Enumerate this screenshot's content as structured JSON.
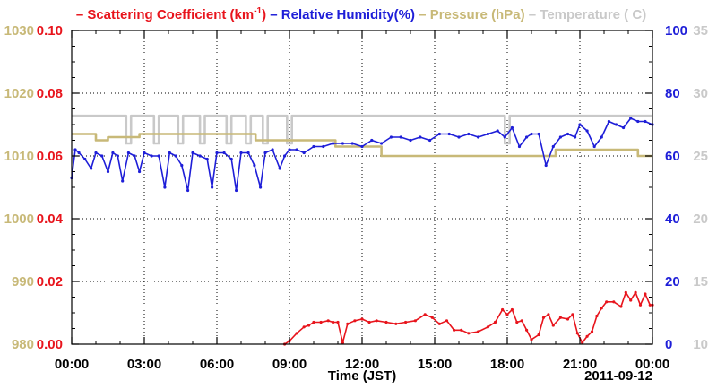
{
  "chart_data": {
    "type": "line",
    "xlabel": "Time (JST)",
    "date_label": "2011-09-12",
    "x_ticks": [
      "00:00",
      "03:00",
      "06:00",
      "09:00",
      "12:00",
      "15:00",
      "18:00",
      "21:00",
      "00:00"
    ],
    "xlim_hours": [
      0,
      24
    ],
    "grid": true,
    "legend": {
      "placement": "top",
      "entries": [
        {
          "name": "Scattering Coefficient (km",
          "sup": "-1",
          "suffix": ")",
          "color": "#e8141c"
        },
        {
          "name": "Relative Humidity(%)",
          "color": "#1e1ed8"
        },
        {
          "name": "Pressure (hPa)",
          "color": "#c8b978"
        },
        {
          "name": "Temperature (",
          "suffix": "C)",
          "color": "#c9c9c9"
        }
      ]
    },
    "axes": {
      "pressure": {
        "ticks": [
          "980",
          "990",
          "1000",
          "1010",
          "1020",
          "1030"
        ],
        "range": [
          980,
          1030
        ],
        "color": "#c8b978"
      },
      "scattering": {
        "ticks": [
          "0.00",
          "0.02",
          "0.04",
          "0.06",
          "0.08",
          "0.10"
        ],
        "range": [
          0,
          0.1
        ],
        "color": "#e8141c"
      },
      "humidity": {
        "ticks": [
          "0",
          "20",
          "40",
          "60",
          "80",
          "100"
        ],
        "range": [
          0,
          100
        ],
        "color": "#1e1ed8"
      },
      "temperature": {
        "ticks": [
          "10",
          "15",
          "20",
          "25",
          "30",
          "35"
        ],
        "range": [
          10,
          35
        ],
        "color": "#c9c9c9"
      }
    },
    "series": [
      {
        "name": "Scattering Coefficient",
        "axis": "scattering",
        "color": "#e8141c",
        "x": [
          8.8,
          9.0,
          9.3,
          9.6,
          9.8,
          10.0,
          10.3,
          10.6,
          10.8,
          11.0,
          11.2,
          11.4,
          11.7,
          12.0,
          12.3,
          12.6,
          13.0,
          13.4,
          13.8,
          14.2,
          14.6,
          14.9,
          15.2,
          15.5,
          15.8,
          16.1,
          16.4,
          16.8,
          17.2,
          17.5,
          17.8,
          18.0,
          18.2,
          18.4,
          18.6,
          18.8,
          19.0,
          19.3,
          19.5,
          19.7,
          19.9,
          20.2,
          20.5,
          20.7,
          20.9,
          21.1,
          21.3,
          21.5,
          21.7,
          21.9,
          22.1,
          22.4,
          22.7,
          22.9,
          23.1,
          23.3,
          23.5,
          23.7,
          23.9,
          24.0
        ],
        "y": [
          0.0,
          0.001,
          0.0035,
          0.0055,
          0.006,
          0.007,
          0.007,
          0.0075,
          0.007,
          0.007,
          0.0005,
          0.0065,
          0.0075,
          0.008,
          0.007,
          0.0075,
          0.007,
          0.0065,
          0.007,
          0.0075,
          0.0095,
          0.0085,
          0.0065,
          0.0075,
          0.0045,
          0.0045,
          0.0035,
          0.004,
          0.0055,
          0.007,
          0.011,
          0.0095,
          0.011,
          0.007,
          0.0075,
          0.0045,
          0.0015,
          0.003,
          0.0085,
          0.0095,
          0.006,
          0.0085,
          0.008,
          0.0095,
          0.0035,
          0.0005,
          0.0025,
          0.004,
          0.009,
          0.0115,
          0.0135,
          0.0135,
          0.012,
          0.0165,
          0.014,
          0.0165,
          0.0125,
          0.016,
          0.0125,
          0.0125
        ]
      },
      {
        "name": "Relative Humidity",
        "axis": "humidity",
        "color": "#1e1ed8",
        "x": [
          0.0,
          0.15,
          0.3,
          0.55,
          0.8,
          1.0,
          1.25,
          1.5,
          1.7,
          1.9,
          2.1,
          2.35,
          2.6,
          2.8,
          3.0,
          3.3,
          3.6,
          3.85,
          4.05,
          4.3,
          4.55,
          4.8,
          5.0,
          5.3,
          5.6,
          5.8,
          6.0,
          6.3,
          6.6,
          6.8,
          7.0,
          7.3,
          7.55,
          7.8,
          8.0,
          8.3,
          8.6,
          8.8,
          9.0,
          9.3,
          9.6,
          10.0,
          10.4,
          10.8,
          11.2,
          11.6,
          12.0,
          12.4,
          12.8,
          13.2,
          13.6,
          14.0,
          14.4,
          14.8,
          15.2,
          15.6,
          16.0,
          16.4,
          16.8,
          17.2,
          17.6,
          17.9,
          18.2,
          18.5,
          18.8,
          19.0,
          19.3,
          19.6,
          19.9,
          20.2,
          20.5,
          20.8,
          21.0,
          21.3,
          21.6,
          21.9,
          22.2,
          22.5,
          22.8,
          23.1,
          23.4,
          23.7,
          24.0
        ],
        "y": [
          53,
          62,
          61,
          59,
          56,
          61,
          60,
          55,
          61,
          60,
          52,
          61,
          60,
          55,
          61,
          60,
          60,
          50,
          61,
          60,
          57,
          49,
          61,
          60,
          59,
          50,
          61,
          61,
          59,
          49,
          61,
          61,
          57,
          50,
          61,
          62,
          56,
          60,
          62,
          62,
          61,
          63,
          63,
          64,
          64,
          64,
          63,
          65,
          64,
          66,
          66,
          65,
          66,
          65,
          67,
          67,
          66,
          67,
          66,
          67,
          68,
          66,
          69,
          63,
          66,
          67,
          67,
          57,
          63,
          66,
          67,
          66,
          70,
          68,
          63,
          66,
          71,
          70,
          69,
          72,
          71,
          71,
          70
        ]
      },
      {
        "name": "Pressure",
        "axis": "pressure",
        "color": "#c8b978",
        "x": [
          0.0,
          1.0,
          1.0,
          1.5,
          1.5,
          2.8,
          2.8,
          7.6,
          7.6,
          10.9,
          10.9,
          12.8,
          12.8,
          20.0,
          20.0,
          23.4,
          23.4,
          24.0
        ],
        "y": [
          1013.5,
          1013.5,
          1012.5,
          1012.5,
          1013.0,
          1013.0,
          1013.5,
          1013.5,
          1012.5,
          1012.5,
          1011.5,
          1011.5,
          1010.0,
          1010.0,
          1011.0,
          1011.0,
          1010.0,
          1010.0
        ]
      },
      {
        "name": "Temperature",
        "axis": "temperature",
        "color": "#c9c9c9",
        "x": [
          0.0,
          2.25,
          2.25,
          2.45,
          2.45,
          3.4,
          3.4,
          3.6,
          3.6,
          4.4,
          4.4,
          4.6,
          4.6,
          5.3,
          5.3,
          5.5,
          5.5,
          6.4,
          6.4,
          6.6,
          6.6,
          7.2,
          7.2,
          7.4,
          7.4,
          7.9,
          7.9,
          8.1,
          8.1,
          8.9,
          8.9,
          9.1,
          9.1,
          17.9,
          17.9,
          18.1,
          18.1,
          24.0
        ],
        "y": [
          28.2,
          28.2,
          26.0,
          26.0,
          28.2,
          28.2,
          26.0,
          26.0,
          28.2,
          28.2,
          26.0,
          26.0,
          28.2,
          28.2,
          26.0,
          26.0,
          28.2,
          28.2,
          26.0,
          26.0,
          28.2,
          28.2,
          26.0,
          26.0,
          28.2,
          28.2,
          26.0,
          26.0,
          28.2,
          28.2,
          26.0,
          26.0,
          28.2,
          28.2,
          26.0,
          26.0,
          28.2,
          28.2
        ]
      }
    ]
  }
}
